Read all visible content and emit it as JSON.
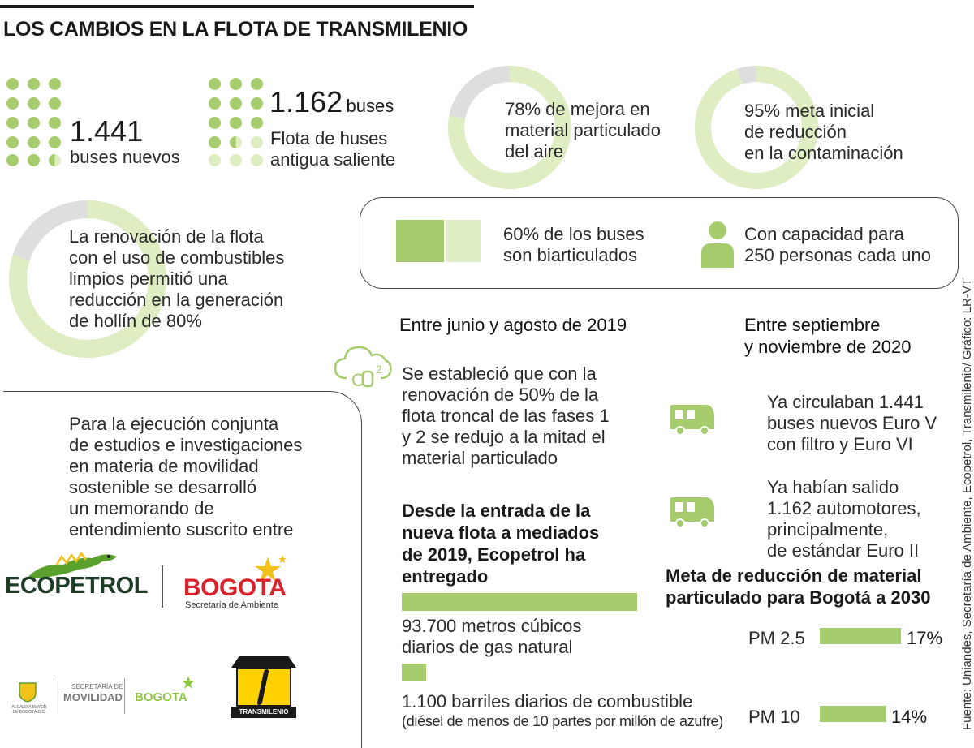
{
  "title": "LOS CAMBIOS EN LA FLOTA DE TRANSMILENIO",
  "colors": {
    "green": "#a6cc6e",
    "light_green": "#dfedc2",
    "gray": "#dedede",
    "text": "#2a2a2a"
  },
  "new_buses": {
    "number": "1.441",
    "label": "buses nuevos"
  },
  "old_buses": {
    "number": "1.162",
    "unit": "buses",
    "label_1": "Flota de huses",
    "label_2": "antigua saliente"
  },
  "donut_air": {
    "percent": 78,
    "lines": [
      "78% de mejora en",
      "material particulado",
      "del aire"
    ]
  },
  "donut_goal": {
    "percent": 95,
    "lines": [
      "95% meta inicial",
      "de reducción",
      "en la contaminación"
    ]
  },
  "donut_soot": {
    "percent": 80,
    "lines": [
      "La renovación de la flota",
      "con el uso de combustibles",
      "limpios permitió una",
      "reducción en la generación",
      "de hollín de 80%"
    ]
  },
  "biarticulated": {
    "percent": 60,
    "lines": [
      "60% de los buses",
      "son biarticulados"
    ],
    "icon": "bus-rectangle-icon"
  },
  "capacity": {
    "lines": [
      "Con capacidad para",
      "250 personas cada uno"
    ],
    "icon": "person-icon"
  },
  "period_2019": {
    "heading": "Entre junio y agosto de 2019",
    "icon": "cloud-co2-icon",
    "lines": [
      "Se estableció que con la",
      "renovación de 50% de la",
      "flota troncal de las fases 1",
      "y 2 se redujo a la mitad el",
      "material particulado"
    ]
  },
  "period_2020": {
    "heading_1": "Entre septiembre",
    "heading_2": "y noviembre de 2020",
    "item_1": [
      "Ya circulaban 1.441",
      "buses nuevos Euro V",
      "con filtro y Euro VI"
    ],
    "item_2": [
      "Ya habían salido",
      "1.162 automotores,",
      "principalmente,",
      "de estándar Euro II"
    ]
  },
  "memorandum": {
    "lines": [
      "Para la ejecución conjunta",
      "de estudios e investigaciones",
      "en materia de movilidad",
      "sostenible se desarrolló",
      "un memorando de",
      "entendimiento suscrito entre"
    ]
  },
  "logos": {
    "ecopetrol": "ECOPETROL",
    "bogota": "BOGOTA",
    "bogota_sub": "Secretaría de Ambiente",
    "alcaldia": "ALCALDÍA MAYOR DE BOGOTÁ D.C.",
    "movilidad_top": "SECRETARÍA DE",
    "movilidad": "MOVILIDAD",
    "bogota_small": "BOGOTA",
    "transmilenio": "TRANSMILENIO"
  },
  "ecopetrol_delivery": {
    "heading": [
      "Desde la entrada de la",
      "nueva flota a mediados",
      "de 2019, Ecopetrol ha",
      "entregado"
    ],
    "gas": {
      "value": 93700,
      "lines": [
        "93.700 metros cúbicos",
        "diarios de gas natural"
      ]
    },
    "fuel": {
      "value": 1100,
      "line_1": "1.100 barriles diarios de combustible",
      "line_2": "(diésel de menos de 10 partes por millón de azufre)"
    }
  },
  "pm_goal": {
    "heading": [
      "Meta de reducción de material",
      "particulado para Bogotá a 2030"
    ],
    "rows": [
      {
        "label": "PM 2.5",
        "value": "17%",
        "percent": 17
      },
      {
        "label": "PM 10",
        "value": "14%",
        "percent": 14
      }
    ]
  },
  "source": "Fuente: Uniandes, Secretaría de Ambiente, Ecopetrol, Transmilenio/ Gráfico: LR-VT"
}
